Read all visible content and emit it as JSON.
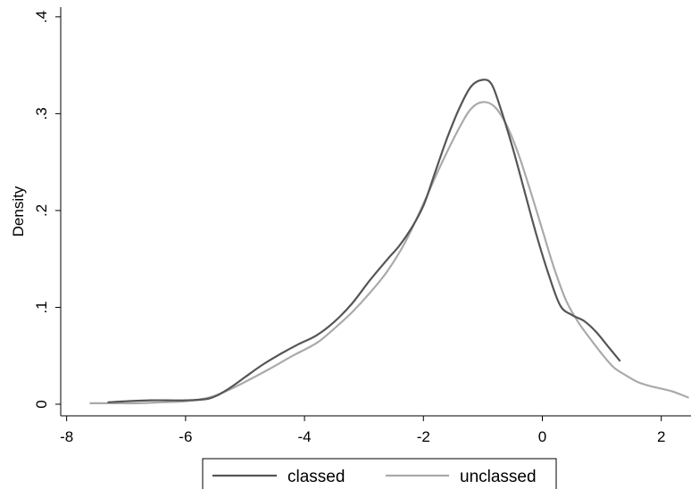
{
  "chart_data": {
    "type": "line",
    "title": "",
    "xlabel": "",
    "ylabel": "Density",
    "xlim": [
      -8.1,
      2.5
    ],
    "ylim": [
      -0.012,
      0.41
    ],
    "xticks": [
      -8,
      -6,
      -4,
      -2,
      0,
      2
    ],
    "xtick_labels": [
      "-8",
      "-6",
      "-4",
      "-2",
      "0",
      "2"
    ],
    "yticks": [
      0,
      0.1,
      0.2,
      0.3,
      0.4
    ],
    "ytick_labels": [
      "0",
      ".1",
      ".2",
      ".3",
      ".4"
    ],
    "grid": false,
    "legend_position": "bottom",
    "series": [
      {
        "name": "classed",
        "color": "#555555",
        "points": [
          [
            -7.3,
            0.002
          ],
          [
            -7.0,
            0.003
          ],
          [
            -6.6,
            0.004
          ],
          [
            -6.3,
            0.004
          ],
          [
            -6.0,
            0.004
          ],
          [
            -5.6,
            0.006
          ],
          [
            -5.3,
            0.015
          ],
          [
            -5.0,
            0.028
          ],
          [
            -4.7,
            0.041
          ],
          [
            -4.4,
            0.052
          ],
          [
            -4.1,
            0.062
          ],
          [
            -3.8,
            0.071
          ],
          [
            -3.5,
            0.085
          ],
          [
            -3.2,
            0.104
          ],
          [
            -2.9,
            0.128
          ],
          [
            -2.6,
            0.15
          ],
          [
            -2.4,
            0.164
          ],
          [
            -2.2,
            0.182
          ],
          [
            -2.0,
            0.205
          ],
          [
            -1.8,
            0.24
          ],
          [
            -1.6,
            0.275
          ],
          [
            -1.4,
            0.305
          ],
          [
            -1.2,
            0.328
          ],
          [
            -1.0,
            0.335
          ],
          [
            -0.85,
            0.33
          ],
          [
            -0.7,
            0.305
          ],
          [
            -0.5,
            0.265
          ],
          [
            -0.3,
            0.22
          ],
          [
            -0.1,
            0.175
          ],
          [
            0.1,
            0.135
          ],
          [
            0.3,
            0.102
          ],
          [
            0.5,
            0.092
          ],
          [
            0.7,
            0.086
          ],
          [
            0.9,
            0.075
          ],
          [
            1.1,
            0.06
          ],
          [
            1.3,
            0.045
          ]
        ]
      },
      {
        "name": "unclassed",
        "color": "#aaaaaa",
        "points": [
          [
            -7.6,
            0.001
          ],
          [
            -7.2,
            0.001
          ],
          [
            -6.8,
            0.001
          ],
          [
            -6.4,
            0.002
          ],
          [
            -6.0,
            0.003
          ],
          [
            -5.6,
            0.007
          ],
          [
            -5.3,
            0.014
          ],
          [
            -5.0,
            0.023
          ],
          [
            -4.6,
            0.036
          ],
          [
            -4.2,
            0.05
          ],
          [
            -3.8,
            0.063
          ],
          [
            -3.5,
            0.078
          ],
          [
            -3.2,
            0.095
          ],
          [
            -2.9,
            0.115
          ],
          [
            -2.6,
            0.138
          ],
          [
            -2.3,
            0.168
          ],
          [
            -2.0,
            0.207
          ],
          [
            -1.7,
            0.248
          ],
          [
            -1.4,
            0.285
          ],
          [
            -1.2,
            0.305
          ],
          [
            -1.0,
            0.312
          ],
          [
            -0.8,
            0.307
          ],
          [
            -0.6,
            0.288
          ],
          [
            -0.4,
            0.258
          ],
          [
            -0.2,
            0.22
          ],
          [
            0.0,
            0.18
          ],
          [
            0.2,
            0.14
          ],
          [
            0.4,
            0.107
          ],
          [
            0.6,
            0.085
          ],
          [
            0.8,
            0.068
          ],
          [
            1.0,
            0.052
          ],
          [
            1.2,
            0.038
          ],
          [
            1.4,
            0.03
          ],
          [
            1.6,
            0.023
          ],
          [
            1.8,
            0.019
          ],
          [
            2.0,
            0.016
          ],
          [
            2.2,
            0.013
          ],
          [
            2.45,
            0.007
          ]
        ]
      }
    ]
  }
}
